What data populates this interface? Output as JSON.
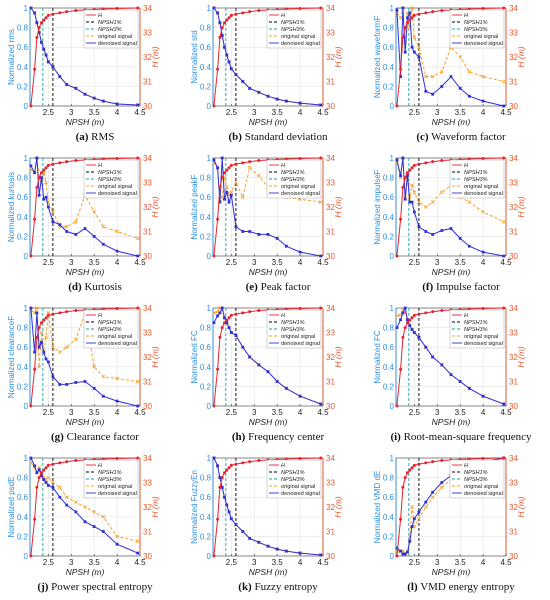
{
  "chart_data": [
    {
      "type": "line",
      "caption_letter": "(a)",
      "caption_text": " RMS",
      "ylabel": "Normalized rms",
      "xlabel": "NPSH (m)",
      "y2label": "H (m)",
      "legend": [
        "H",
        "NPSH1%",
        "NPSH3%",
        "original signal",
        "denoised signal"
      ],
      "orig_y": [
        1.0,
        0.95,
        0.85,
        0.75,
        0.65,
        0.58,
        0.52,
        0.45,
        0.4,
        0.3,
        0.22,
        0.18,
        0.12,
        0.08,
        0.05,
        0.02,
        0.01
      ],
      "den_y": [
        1.0,
        0.95,
        0.85,
        0.75,
        0.65,
        0.58,
        0.52,
        0.45,
        0.4,
        0.3,
        0.22,
        0.18,
        0.12,
        0.08,
        0.05,
        0.02,
        0.01
      ]
    },
    {
      "type": "line",
      "caption_letter": "(b)",
      "caption_text": " Standard deviation",
      "ylabel": "Normalized std",
      "xlabel": "NPSH (m)",
      "y2label": "H (m)",
      "legend": [
        "H",
        "NPSH1%",
        "NPSH3%",
        "original signal",
        "denoised signal"
      ],
      "orig_y": [
        1.0,
        0.95,
        0.85,
        0.72,
        0.6,
        0.52,
        0.45,
        0.38,
        0.32,
        0.25,
        0.18,
        0.14,
        0.1,
        0.07,
        0.05,
        0.03,
        0.01
      ],
      "den_y": [
        1.0,
        0.95,
        0.85,
        0.72,
        0.6,
        0.52,
        0.45,
        0.38,
        0.32,
        0.25,
        0.18,
        0.14,
        0.1,
        0.07,
        0.05,
        0.03,
        0.01
      ]
    },
    {
      "type": "line",
      "caption_letter": "(c)",
      "caption_text": " Waveform factor",
      "ylabel": "Normalized waveformF",
      "xlabel": "NPSH (m)",
      "y2label": "H (m)",
      "legend": [
        "H",
        "NPSH1%",
        "NPSH3%",
        "original signal",
        "denoised signal"
      ],
      "orig_y": [
        0.95,
        0.9,
        1.0,
        0.65,
        0.95,
        0.8,
        1.0,
        0.7,
        0.6,
        0.3,
        0.3,
        0.35,
        0.6,
        0.5,
        0.35,
        0.3,
        0.25
      ],
      "den_y": [
        0.98,
        0.3,
        1.0,
        0.55,
        0.9,
        0.95,
        0.6,
        0.55,
        0.5,
        0.15,
        0.12,
        0.2,
        0.3,
        0.18,
        0.1,
        0.05,
        0.0
      ]
    },
    {
      "type": "line",
      "caption_letter": "(d)",
      "caption_text": " Kurtosis",
      "ylabel": "Normalized kurtosis",
      "xlabel": "NPSH (m)",
      "y2label": "H (m)",
      "legend": [
        "H",
        "NPSH1%",
        "NPSH3%",
        "original signal",
        "denoised signal"
      ],
      "orig_y": [
        0.88,
        0.85,
        1.0,
        0.8,
        0.75,
        0.85,
        0.75,
        0.55,
        0.45,
        0.3,
        0.3,
        0.35,
        0.62,
        0.45,
        0.3,
        0.25,
        0.18
      ],
      "den_y": [
        0.92,
        0.85,
        1.0,
        0.62,
        0.8,
        0.58,
        0.6,
        0.5,
        0.35,
        0.32,
        0.25,
        0.22,
        0.28,
        0.2,
        0.12,
        0.05,
        0.0
      ]
    },
    {
      "type": "line",
      "caption_letter": "(e)",
      "caption_text": " Peak factor",
      "ylabel": "Normalized peakF",
      "xlabel": "NPSH (m)",
      "y2label": "H (m)",
      "legend": [
        "H",
        "NPSH1%",
        "NPSH3%",
        "original signal",
        "denoised signal"
      ],
      "orig_y": [
        0.95,
        0.9,
        0.55,
        0.6,
        0.8,
        0.7,
        0.62,
        0.65,
        0.75,
        0.6,
        0.9,
        0.82,
        0.7,
        0.68,
        0.6,
        0.58,
        0.55
      ],
      "den_y": [
        0.98,
        0.9,
        0.55,
        1.0,
        0.58,
        0.65,
        0.55,
        0.62,
        0.3,
        0.25,
        0.25,
        0.22,
        0.22,
        0.18,
        0.1,
        0.04,
        0.0
      ]
    },
    {
      "type": "line",
      "caption_letter": "(f)",
      "caption_text": " Impulse factor",
      "ylabel": "Normalized impulseF",
      "xlabel": "NPSH (m)",
      "y2label": "H (m)",
      "legend": [
        "H",
        "NPSH1%",
        "NPSH3%",
        "original signal",
        "denoised signal"
      ],
      "orig_y": [
        0.95,
        0.8,
        1.0,
        0.6,
        0.85,
        0.6,
        0.72,
        0.65,
        0.55,
        0.5,
        0.55,
        0.65,
        0.72,
        0.6,
        0.55,
        0.45,
        0.35
      ],
      "den_y": [
        0.98,
        0.82,
        1.0,
        0.58,
        0.82,
        0.55,
        0.55,
        0.45,
        0.3,
        0.25,
        0.22,
        0.26,
        0.28,
        0.18,
        0.1,
        0.04,
        0.0
      ]
    },
    {
      "type": "line",
      "caption_letter": "(g)",
      "caption_text": " Clearance factor",
      "ylabel": "Normalized clearanceF",
      "xlabel": "NPSH (m)",
      "y2label": "H (m)",
      "legend": [
        "H",
        "NPSH1%",
        "NPSH3%",
        "original signal",
        "denoised signal"
      ],
      "orig_y": [
        0.98,
        0.95,
        1.0,
        0.4,
        0.75,
        0.55,
        0.7,
        0.95,
        0.6,
        0.55,
        0.6,
        0.68,
        0.95,
        0.4,
        0.3,
        0.28,
        0.25
      ],
      "den_y": [
        1.0,
        0.55,
        0.95,
        0.6,
        0.65,
        0.55,
        0.48,
        0.45,
        0.3,
        0.22,
        0.22,
        0.24,
        0.25,
        0.18,
        0.1,
        0.05,
        0.0
      ]
    },
    {
      "type": "line",
      "caption_letter": "(h)",
      "caption_text": " Frequency center",
      "ylabel": "Normalized FC",
      "xlabel": "NPSH (m)",
      "y2label": "H (m)",
      "legend": [
        "H",
        "NPSH1%",
        "NPSH3%",
        "original signal",
        "denoised signal"
      ],
      "orig_y": [
        0.95,
        0.96,
        1.0,
        0.98,
        0.9,
        0.85,
        0.8,
        0.75,
        0.72,
        0.6,
        0.5,
        0.42,
        0.35,
        0.25,
        0.18,
        0.1,
        0.02
      ],
      "den_y": [
        0.85,
        0.92,
        0.95,
        1.0,
        0.9,
        0.85,
        0.8,
        0.75,
        0.72,
        0.6,
        0.5,
        0.42,
        0.35,
        0.25,
        0.18,
        0.1,
        0.02
      ]
    },
    {
      "type": "line",
      "caption_letter": "(i)",
      "caption_text": " Root-mean-square frequency",
      "ylabel": "Normalized FC",
      "xlabel": "NPSH (m)",
      "y2label": "H (m)",
      "legend": [
        "H",
        "NPSH1%",
        "NPSH3%",
        "original signal",
        "denoised signal"
      ],
      "orig_y": [
        0.92,
        0.93,
        0.98,
        0.95,
        0.88,
        0.82,
        0.78,
        0.75,
        0.7,
        0.6,
        0.5,
        0.42,
        0.32,
        0.25,
        0.18,
        0.1,
        0.02
      ],
      "den_y": [
        0.8,
        0.88,
        0.95,
        1.0,
        0.88,
        0.82,
        0.78,
        0.75,
        0.7,
        0.6,
        0.5,
        0.42,
        0.32,
        0.25,
        0.18,
        0.1,
        0.02
      ]
    },
    {
      "type": "line",
      "caption_letter": "(j)",
      "caption_text": " Power spectral entropy",
      "ylabel": "Normalized psdE",
      "xlabel": "NPSH (m)",
      "y2label": "H (m)",
      "legend": [
        "H",
        "NPSH1%",
        "NPSH3%",
        "original signal",
        "denoised signal"
      ],
      "orig_y": [
        0.95,
        0.9,
        0.85,
        0.9,
        0.85,
        0.8,
        0.78,
        0.8,
        0.75,
        0.7,
        0.6,
        0.55,
        0.5,
        0.45,
        0.4,
        0.2,
        0.15
      ],
      "den_y": [
        1.0,
        0.92,
        0.85,
        0.88,
        0.82,
        0.78,
        0.75,
        0.72,
        0.7,
        0.6,
        0.52,
        0.45,
        0.35,
        0.3,
        0.25,
        0.12,
        0.03
      ]
    },
    {
      "type": "line",
      "caption_letter": "(k)",
      "caption_text": " Fuzzy entropy",
      "ylabel": "Normalized FuzzyEn",
      "xlabel": "NPSH (m)",
      "y2label": "H (m)",
      "legend": [
        "H",
        "NPSH1%",
        "NPSH3%",
        "original signal",
        "denoised signal"
      ],
      "orig_y": [
        1.0,
        0.92,
        0.8,
        0.7,
        0.6,
        0.52,
        0.45,
        0.38,
        0.32,
        0.25,
        0.18,
        0.14,
        0.1,
        0.07,
        0.05,
        0.03,
        0.01
      ],
      "den_y": [
        1.0,
        0.92,
        0.8,
        0.7,
        0.6,
        0.52,
        0.45,
        0.38,
        0.32,
        0.25,
        0.18,
        0.14,
        0.1,
        0.07,
        0.05,
        0.03,
        0.01
      ]
    },
    {
      "type": "line",
      "caption_letter": "(l)",
      "caption_text": " VMD energy entropy",
      "ylabel": "Normalized VMD dE",
      "xlabel": "NPSH (m)",
      "y2label": "H (m)",
      "legend": [
        "H",
        "NPSH1%",
        "NPSH3%",
        "original signal",
        "denoised signal"
      ],
      "orig_y": [
        0.05,
        0.05,
        0.05,
        0.03,
        0.04,
        0.2,
        0.5,
        0.3,
        0.38,
        0.5,
        0.6,
        0.7,
        0.78,
        0.85,
        0.92,
        0.95,
        1.0
      ],
      "den_y": [
        0.08,
        0.05,
        0.02,
        0.02,
        0.04,
        0.15,
        0.3,
        0.38,
        0.45,
        0.55,
        0.65,
        0.75,
        0.82,
        0.88,
        0.92,
        0.96,
        1.0
      ]
    }
  ],
  "shared": {
    "x": [
      2.12,
      2.2,
      2.25,
      2.3,
      2.35,
      2.4,
      2.45,
      2.5,
      2.6,
      2.75,
      2.9,
      3.1,
      3.3,
      3.5,
      3.7,
      4.0,
      4.45
    ],
    "h_y": [
      30.0,
      31.5,
      32.8,
      33.2,
      33.4,
      33.5,
      33.6,
      33.7,
      33.75,
      33.8,
      33.85,
      33.9,
      33.92,
      33.94,
      33.96,
      33.98,
      34.0
    ],
    "npsh1": 2.6,
    "npsh3": 2.38,
    "xlim": [
      2.1,
      4.5
    ],
    "ylim": [
      0,
      1
    ],
    "y2lim": [
      30,
      34
    ],
    "xticks": [
      "2.5",
      "3",
      "3.5",
      "4",
      "4.5"
    ],
    "yticks": [
      "0",
      "0.2",
      "0.4",
      "0.6",
      "0.8",
      "1"
    ],
    "y2ticks": [
      "30",
      "31",
      "32",
      "33",
      "34"
    ],
    "colors": {
      "h": "#e8232d",
      "npsh1": "#000000",
      "npsh3": "#16a3a6",
      "orig": "#f5a12a",
      "den": "#2f2fd6",
      "left_axis": "#2c8fe0",
      "right_axis": "#e8562d"
    }
  }
}
